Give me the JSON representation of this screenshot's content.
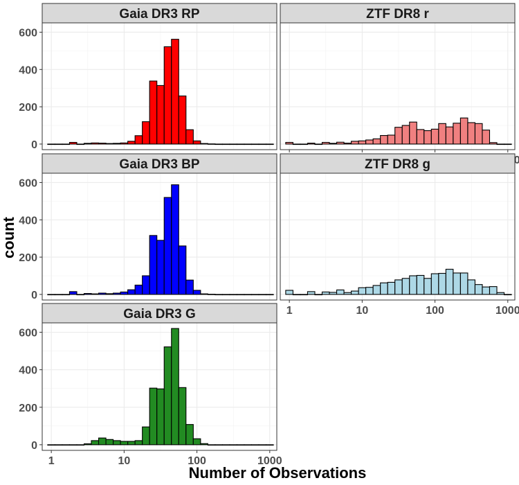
{
  "figure": {
    "ylabel": "count",
    "xlabel": "Number of Observations",
    "x_tick_labels": [
      "1",
      "10",
      "100",
      "1000"
    ],
    "y_tick_labels": [
      "0",
      "200",
      "400",
      "600"
    ]
  },
  "chart_data": [
    {
      "type": "bar",
      "title": "Gaia DR3 RP",
      "color": "#ff0000",
      "x_scale": "log10",
      "xlim": [
        0.75,
        1250
      ],
      "ylim": [
        -30,
        650
      ],
      "bin_log_centers": [
        0.0,
        0.1,
        0.2,
        0.3,
        0.4,
        0.5,
        0.6,
        0.7,
        0.8,
        0.9,
        1.0,
        1.1,
        1.2,
        1.3,
        1.4,
        1.5,
        1.6,
        1.7,
        1.8,
        1.9,
        2.0,
        2.1,
        2.2,
        2.3,
        2.4,
        2.5,
        2.6,
        2.7,
        2.8,
        2.9,
        3.0
      ],
      "counts": [
        0,
        0,
        0,
        9,
        0,
        4,
        6,
        5,
        3,
        4,
        6,
        15,
        45,
        120,
        338,
        314,
        522,
        562,
        258,
        77,
        17,
        3,
        1,
        0,
        0,
        0,
        0,
        0,
        0,
        0,
        0
      ]
    },
    {
      "type": "bar",
      "title": "ZTF DR8 r",
      "color": "#f08080",
      "x_scale": "log10",
      "xlim": [
        0.75,
        1250
      ],
      "ylim": [
        -30,
        650
      ],
      "bin_log_centers": [
        0.0,
        0.1,
        0.2,
        0.3,
        0.4,
        0.5,
        0.6,
        0.7,
        0.8,
        0.9,
        1.0,
        1.1,
        1.2,
        1.3,
        1.4,
        1.5,
        1.6,
        1.7,
        1.8,
        1.9,
        2.0,
        2.1,
        2.2,
        2.3,
        2.4,
        2.5,
        2.6,
        2.7,
        2.8,
        2.9,
        3.0
      ],
      "counts": [
        9,
        0,
        0,
        5,
        0,
        9,
        4,
        10,
        5,
        15,
        17,
        22,
        28,
        46,
        48,
        90,
        100,
        118,
        78,
        72,
        80,
        110,
        92,
        112,
        140,
        115,
        110,
        75,
        8,
        0,
        0
      ]
    },
    {
      "type": "bar",
      "title": "Gaia DR3 BP",
      "color": "#0000ff",
      "x_scale": "log10",
      "xlim": [
        0.75,
        1250
      ],
      "ylim": [
        -30,
        650
      ],
      "bin_log_centers": [
        0.0,
        0.1,
        0.2,
        0.3,
        0.4,
        0.5,
        0.6,
        0.7,
        0.8,
        0.9,
        1.0,
        1.1,
        1.2,
        1.3,
        1.4,
        1.5,
        1.6,
        1.7,
        1.8,
        1.9,
        2.0,
        2.1,
        2.2,
        2.3,
        2.4,
        2.5,
        2.6,
        2.7,
        2.8,
        2.9,
        3.0
      ],
      "counts": [
        0,
        0,
        0,
        15,
        0,
        5,
        3,
        7,
        4,
        7,
        13,
        25,
        50,
        100,
        316,
        290,
        520,
        588,
        260,
        77,
        22,
        3,
        1,
        0,
        0,
        0,
        0,
        0,
        0,
        0,
        0
      ]
    },
    {
      "type": "bar",
      "title": "ZTF DR8 g",
      "color": "#add8e6",
      "x_scale": "log10",
      "xlim": [
        0.75,
        1250
      ],
      "ylim": [
        -30,
        650
      ],
      "bin_log_centers": [
        0.0,
        0.1,
        0.2,
        0.3,
        0.4,
        0.5,
        0.6,
        0.7,
        0.8,
        0.9,
        1.0,
        1.1,
        1.2,
        1.3,
        1.4,
        1.5,
        1.6,
        1.7,
        1.8,
        1.9,
        2.0,
        2.1,
        2.2,
        2.3,
        2.4,
        2.5,
        2.6,
        2.7,
        2.8,
        2.9,
        3.0
      ],
      "counts": [
        22,
        0,
        0,
        15,
        0,
        13,
        11,
        24,
        10,
        18,
        36,
        38,
        48,
        62,
        65,
        78,
        86,
        100,
        102,
        86,
        111,
        113,
        135,
        115,
        115,
        78,
        53,
        40,
        42,
        10,
        0
      ]
    },
    {
      "type": "bar",
      "title": "Gaia DR3 G",
      "color": "#228b22",
      "x_scale": "log10",
      "xlim": [
        0.75,
        1250
      ],
      "ylim": [
        -30,
        650
      ],
      "bin_log_centers": [
        0.0,
        0.1,
        0.2,
        0.3,
        0.4,
        0.5,
        0.6,
        0.7,
        0.8,
        0.9,
        1.0,
        1.1,
        1.2,
        1.3,
        1.4,
        1.5,
        1.6,
        1.7,
        1.8,
        1.9,
        2.0,
        2.1,
        2.2,
        2.3,
        2.4,
        2.5,
        2.6,
        2.7,
        2.8,
        2.9,
        3.0
      ],
      "counts": [
        0,
        0,
        0,
        0,
        0,
        5,
        22,
        36,
        28,
        22,
        18,
        18,
        22,
        95,
        302,
        298,
        522,
        620,
        305,
        108,
        32,
        6,
        0,
        0,
        0,
        0,
        0,
        0,
        0,
        0,
        0
      ]
    }
  ]
}
